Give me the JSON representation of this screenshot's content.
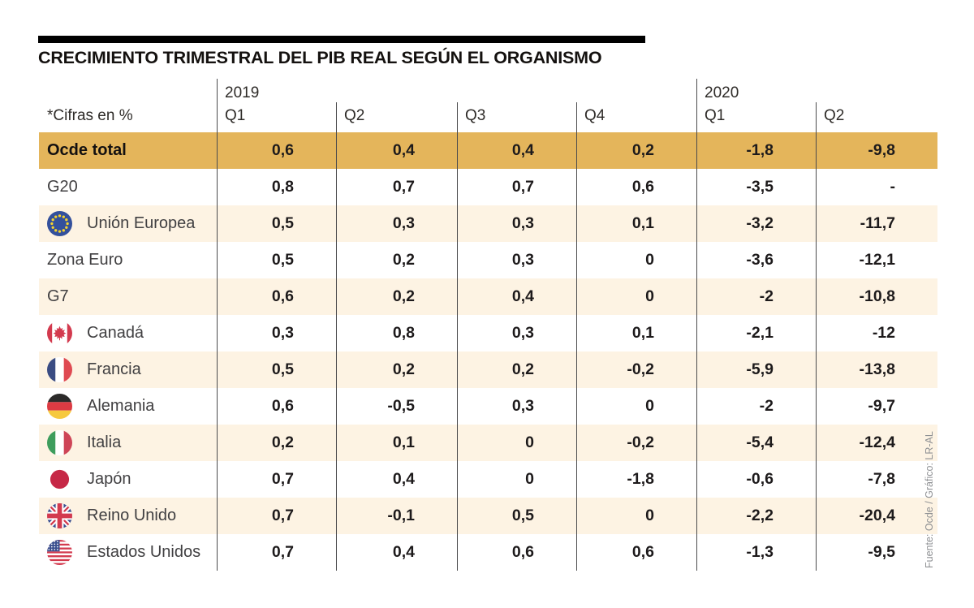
{
  "chart_data": {
    "type": "table",
    "title": "CRECIMIENTO TRIMESTRAL DEL PIB REAL SEGÚN EL ORGANISMO",
    "unit_note": "*Cifras en %",
    "year_groups": [
      {
        "year": "2019",
        "quarters": [
          "Q1",
          "Q2",
          "Q3",
          "Q4"
        ]
      },
      {
        "year": "2020",
        "quarters": [
          "Q1",
          "Q2"
        ]
      }
    ],
    "columns": [
      "2019 Q1",
      "2019 Q2",
      "2019 Q3",
      "2019 Q4",
      "2020 Q1",
      "2020 Q2"
    ],
    "rows": [
      {
        "label": "Ocde total",
        "flag": null,
        "highlight": true,
        "values": [
          "0,6",
          "0,4",
          "0,4",
          "0,2",
          "-1,8",
          "-9,8"
        ]
      },
      {
        "label": "G20",
        "flag": null,
        "highlight": false,
        "values": [
          "0,8",
          "0,7",
          "0,7",
          "0,6",
          "-3,5",
          "-"
        ]
      },
      {
        "label": "Unión Europea",
        "flag": "eu",
        "highlight": false,
        "values": [
          "0,5",
          "0,3",
          "0,3",
          "0,1",
          "-3,2",
          "-11,7"
        ]
      },
      {
        "label": "Zona Euro",
        "flag": null,
        "highlight": false,
        "values": [
          "0,5",
          "0,2",
          "0,3",
          "0",
          "-3,6",
          "-12,1"
        ]
      },
      {
        "label": "G7",
        "flag": null,
        "highlight": false,
        "values": [
          "0,6",
          "0,2",
          "0,4",
          "0",
          "-2",
          "-10,8"
        ]
      },
      {
        "label": "Canadá",
        "flag": "canada",
        "highlight": false,
        "values": [
          "0,3",
          "0,8",
          "0,3",
          "0,1",
          "-2,1",
          "-12"
        ]
      },
      {
        "label": "Francia",
        "flag": "france",
        "highlight": false,
        "values": [
          "0,5",
          "0,2",
          "0,2",
          "-0,2",
          "-5,9",
          "-13,8"
        ]
      },
      {
        "label": "Alemania",
        "flag": "germany",
        "highlight": false,
        "values": [
          "0,6",
          "-0,5",
          "0,3",
          "0",
          "-2",
          "-9,7"
        ]
      },
      {
        "label": "Italia",
        "flag": "italy",
        "highlight": false,
        "values": [
          "0,2",
          "0,1",
          "0",
          "-0,2",
          "-5,4",
          "-12,4"
        ]
      },
      {
        "label": "Japón",
        "flag": "japan",
        "highlight": false,
        "values": [
          "0,7",
          "0,4",
          "0",
          "-1,8",
          "-0,6",
          "-7,8"
        ]
      },
      {
        "label": "Reino Unido",
        "flag": "uk",
        "highlight": false,
        "values": [
          "0,7",
          "-0,1",
          "0,5",
          "0",
          "-2,2",
          "-20,4"
        ]
      },
      {
        "label": "Estados Unidos",
        "flag": "us",
        "highlight": false,
        "values": [
          "0,7",
          "0,4",
          "0,6",
          "0,6",
          "-1,3",
          "-9,5"
        ]
      }
    ],
    "source": "Fuente: Ocde / Gráfico: LR-AL",
    "colors": {
      "highlight_row": "#e4b55b",
      "stripe_row": "#fdf3e3",
      "divider": "#4b4b4d",
      "flag_red": "#d33a4e",
      "flag_blue": "#3a4f8f",
      "star_yellow": "#f6d32d"
    },
    "layout_hints": {
      "grid": "off",
      "row_striping": "alternating cream/white",
      "first_row": "gold highlight"
    }
  }
}
